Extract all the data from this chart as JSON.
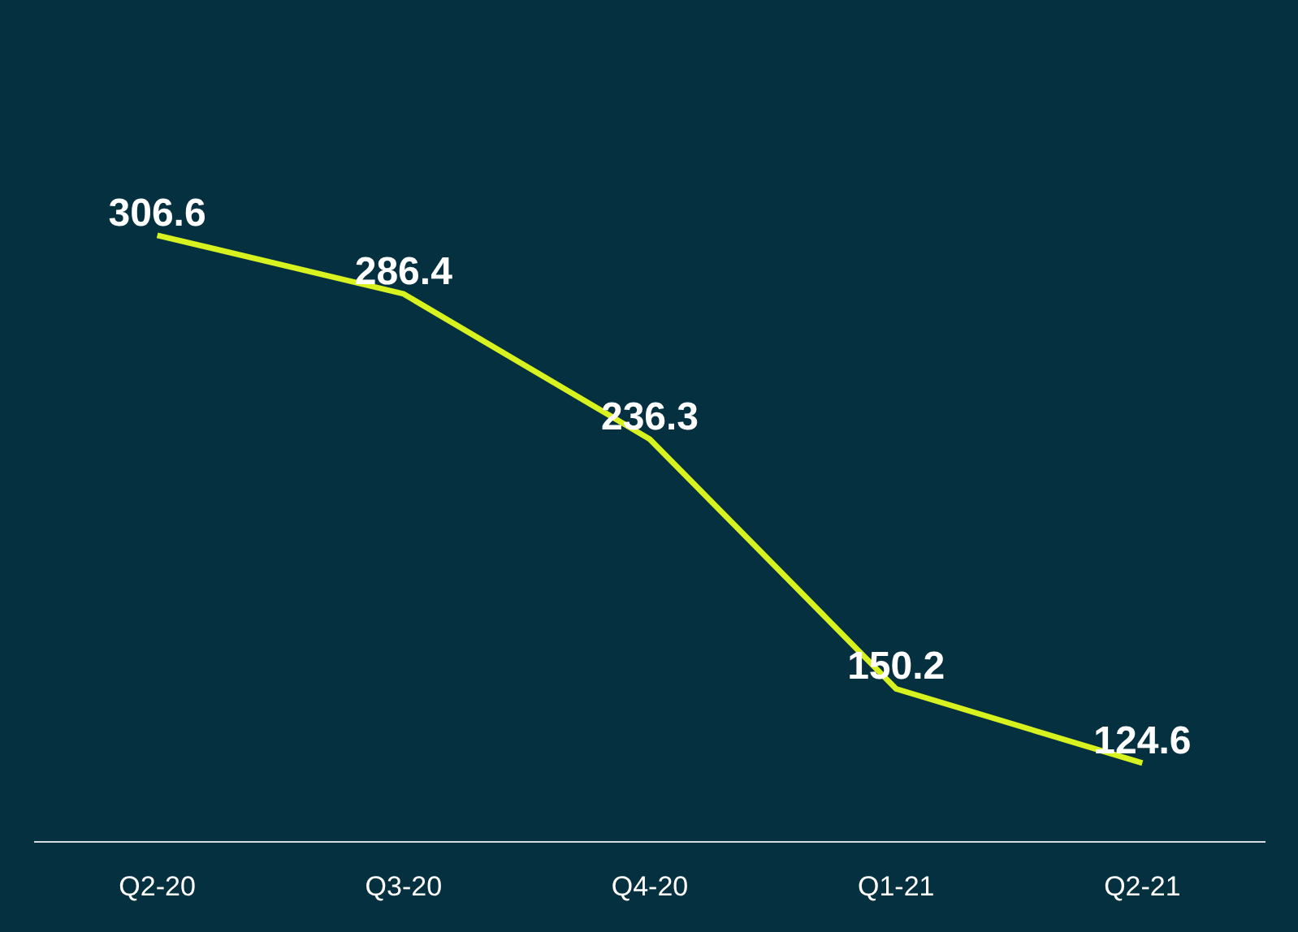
{
  "chart_data": {
    "type": "line",
    "categories": [
      "Q2-20",
      "Q3-20",
      "Q4-20",
      "Q1-21",
      "Q2-21"
    ],
    "series": [
      {
        "color": "#d7f21f",
        "values": [
          306.6,
          286.4,
          236.3,
          150.2,
          124.6
        ]
      }
    ],
    "data_labels": true,
    "marker": "none",
    "grid": false
  }
}
